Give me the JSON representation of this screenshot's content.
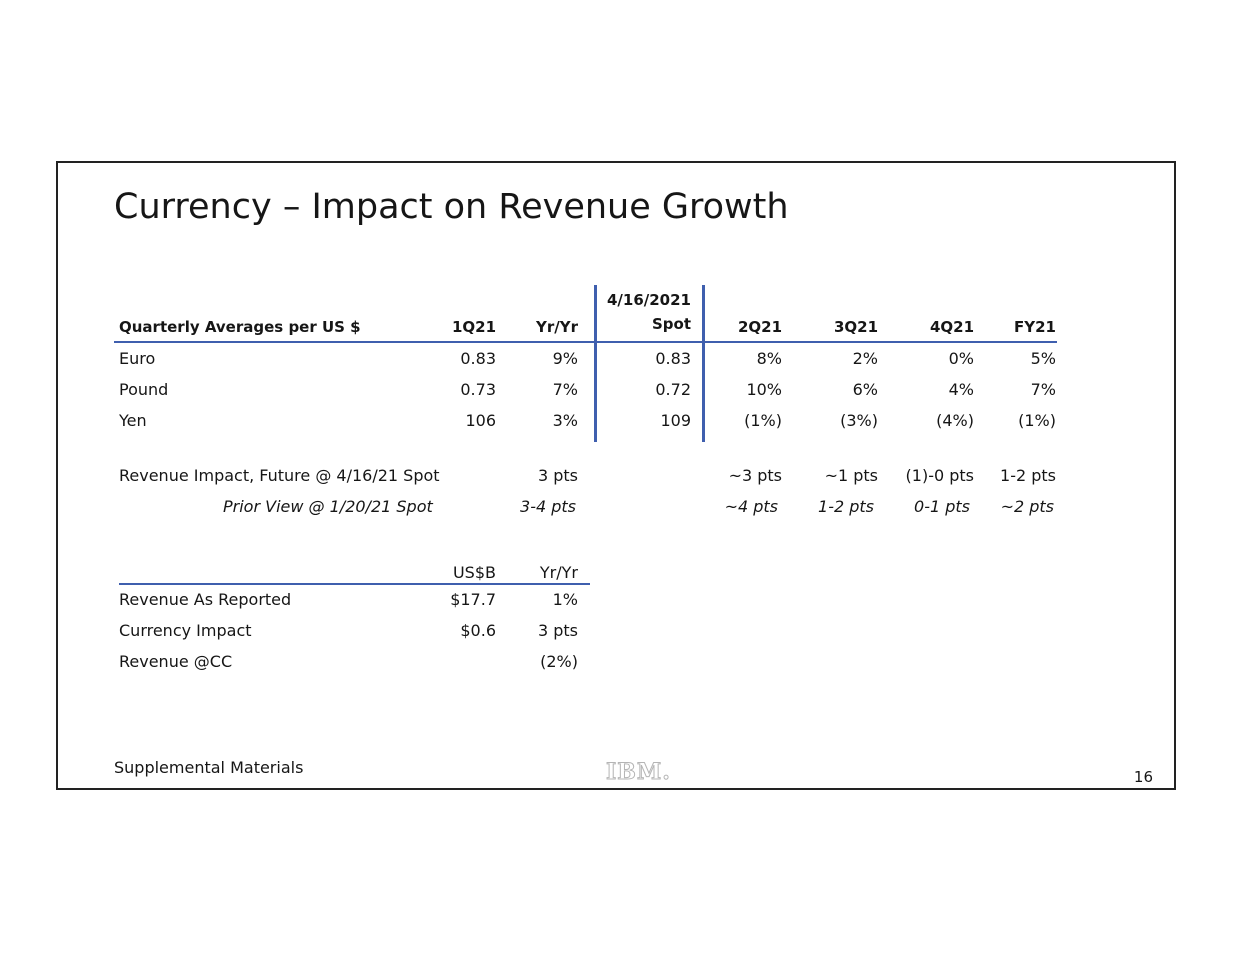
{
  "slide": {
    "title": "Currency – Impact on Revenue Growth",
    "footer_left": "Supplemental Materials",
    "logo_text": "IBM.",
    "page_number": "16"
  },
  "fx_table": {
    "headers": {
      "label": "Quarterly Averages per US $",
      "q1": "1Q21",
      "yy": "Yr/Yr",
      "spot_date": "4/16/2021",
      "spot": "Spot",
      "q2": "2Q21",
      "q3": "3Q21",
      "q4": "4Q21",
      "fy": "FY21"
    },
    "rows": [
      {
        "label": "Euro",
        "q1": "0.83",
        "yy": "9%",
        "spot": "0.83",
        "q2": "8%",
        "q3": "2%",
        "q4": "0%",
        "fy": "5%"
      },
      {
        "label": "Pound",
        "q1": "0.73",
        "yy": "7%",
        "spot": "0.72",
        "q2": "10%",
        "q3": "6%",
        "q4": "4%",
        "fy": "7%"
      },
      {
        "label": "Yen",
        "q1": "106",
        "yy": "3%",
        "spot": "109",
        "q2": "(1%)",
        "q3": "(3%)",
        "q4": "(4%)",
        "fy": "(1%)"
      }
    ]
  },
  "impact": {
    "future": {
      "label": "Revenue Impact, Future @ 4/16/21 Spot",
      "yy": "3 pts",
      "q2": "~3 pts",
      "q3": "~1 pts",
      "q4": "(1)-0 pts",
      "fy": "1-2 pts"
    },
    "prior": {
      "label": "Prior View @ 1/20/21 Spot",
      "yy": "3-4 pts",
      "q2": "~4 pts",
      "q3": "1-2 pts",
      "q4": "0-1 pts",
      "fy": "~2 pts"
    }
  },
  "revenue_table": {
    "headers": {
      "usd": "US$B",
      "yy": "Yr/Yr"
    },
    "rows": [
      {
        "label": "Revenue As Reported",
        "usd": "$17.7",
        "yy": "1%"
      },
      {
        "label": "Currency Impact",
        "usd": "$0.6",
        "yy": "3 pts"
      },
      {
        "label": "Revenue @CC",
        "usd": "",
        "yy": "(2%)"
      }
    ]
  },
  "colors": {
    "accent": "#3f5fae",
    "text": "#161616",
    "border": "#222222"
  }
}
